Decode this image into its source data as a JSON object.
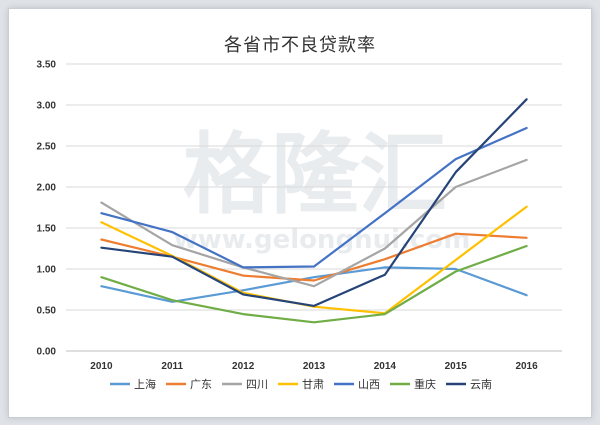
{
  "chart_data": {
    "type": "line",
    "title": "各省市不良贷款率",
    "categories": [
      "2010",
      "2011",
      "2012",
      "2013",
      "2014",
      "2015",
      "2016"
    ],
    "ylim": [
      0,
      3.5
    ],
    "yticks": [
      "0.00",
      "0.50",
      "1.00",
      "1.50",
      "2.00",
      "2.50",
      "3.00",
      "3.50"
    ],
    "grid": true,
    "legend_position": "bottom",
    "series": [
      {
        "name": "上海",
        "color": "#5b9bd5",
        "values": [
          0.79,
          0.6,
          0.74,
          0.9,
          1.02,
          1.0,
          0.68
        ]
      },
      {
        "name": "广东",
        "color": "#ed7d31",
        "values": [
          1.36,
          1.15,
          0.92,
          0.86,
          1.12,
          1.43,
          1.38
        ]
      },
      {
        "name": "四川",
        "color": "#a5a5a5",
        "values": [
          1.81,
          1.29,
          1.02,
          0.79,
          1.25,
          2.0,
          2.33
        ]
      },
      {
        "name": "甘肃",
        "color": "#ffc000",
        "values": [
          1.57,
          1.16,
          0.71,
          0.54,
          0.46,
          1.11,
          1.76
        ]
      },
      {
        "name": "山西",
        "color": "#4472c4",
        "values": [
          1.68,
          1.45,
          1.02,
          1.03,
          1.68,
          2.34,
          2.72
        ]
      },
      {
        "name": "重庆",
        "color": "#70ad47",
        "values": [
          0.9,
          0.62,
          0.45,
          0.35,
          0.45,
          0.97,
          1.28
        ]
      },
      {
        "name": "云南",
        "color": "#264478",
        "values": [
          1.26,
          1.15,
          0.69,
          0.55,
          0.93,
          2.18,
          3.07
        ]
      }
    ]
  },
  "watermark": {
    "logo_text": "格隆汇",
    "url_text": "www.gelonghui.com"
  }
}
